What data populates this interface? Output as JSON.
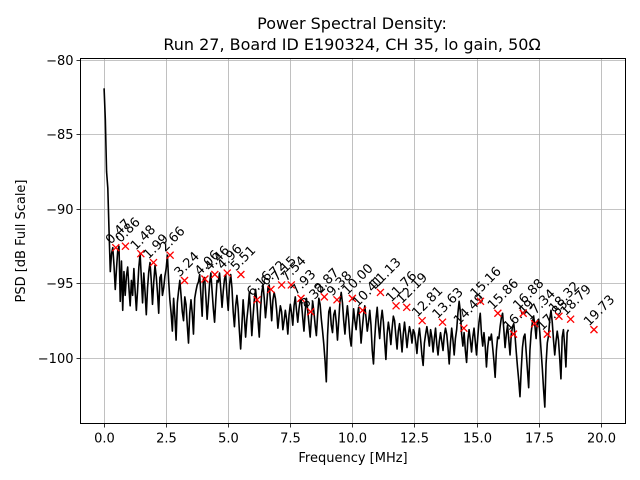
{
  "chart_data": {
    "type": "line",
    "title_line1": "Power Spectral Density:",
    "title_line2": "Run 27, Board ID E190324, CH 35, lo gain, 50Ω",
    "xlabel": "Frequency [MHz]",
    "ylabel": "PSD [dB Full Scale]",
    "xlim": [
      -0.95,
      21.0
    ],
    "ylim": [
      -104.4,
      -79.9
    ],
    "grid": true,
    "xticks": [
      0.0,
      2.5,
      5.0,
      7.5,
      10.0,
      12.5,
      15.0,
      17.5,
      20.0
    ],
    "xtick_labels": [
      "0.0",
      "2.5",
      "5.0",
      "7.5",
      "10.0",
      "12.5",
      "15.0",
      "17.5",
      "20.0"
    ],
    "yticks": [
      -80,
      -85,
      -90,
      -95,
      -100
    ],
    "ytick_labels": [
      "−80",
      "−85",
      "−90",
      "−95",
      "−100"
    ],
    "line_color": "#000000",
    "marker_color": "#ff0000",
    "series": [
      {
        "name": "PSD",
        "x_start": 0.0,
        "x_step": 0.05,
        "values": [
          -81.9,
          -84.0,
          -87.5,
          -88.6,
          -91.5,
          -94.2,
          -93.0,
          -92.6,
          -93.8,
          -95.4,
          -94.0,
          -92.8,
          -92.5,
          -96.2,
          -93.5,
          -96.8,
          -94.2,
          -95.8,
          -94.5,
          -93.9,
          -95.3,
          -96.5,
          -94.8,
          -95.8,
          -94.0,
          -95.5,
          -96.8,
          -95.4,
          -93.9,
          -93.0,
          -94.6,
          -96.3,
          -94.3,
          -95.6,
          -97.1,
          -95.3,
          -94.2,
          -93.6,
          -94.8,
          -96.4,
          -94.9,
          -93.8,
          -94.5,
          -95.6,
          -97.0,
          -94.6,
          -94.4,
          -95.8,
          -95.3,
          -94.5,
          -94.0,
          -93.1,
          -94.8,
          -96.1,
          -97.0,
          -98.2,
          -96.0,
          -97.2,
          -98.8,
          -96.3,
          -95.5,
          -94.8,
          -95.8,
          -96.9,
          -97.5,
          -95.9,
          -96.4,
          -97.8,
          -99.0,
          -97.0,
          -96.1,
          -97.0,
          -98.4,
          -96.0,
          -95.5,
          -95.1,
          -94.9,
          -94.4,
          -95.8,
          -97.2,
          -94.7,
          -94.6,
          -95.9,
          -97.4,
          -96.2,
          -95.0,
          -94.3,
          -95.5,
          -96.7,
          -97.6,
          -96.1,
          -94.8,
          -94.9,
          -94.3,
          -95.4,
          -96.6,
          -95.5,
          -94.7,
          -94.4,
          -95.8,
          -96.8,
          -95.1,
          -94.4,
          -95.3,
          -96.9,
          -97.9,
          -96.5,
          -95.8,
          -96.7,
          -98.2,
          -99.4,
          -97.8,
          -96.1,
          -97.3,
          -98.6,
          -97.4,
          -96.6,
          -95.6,
          -96.9,
          -98.5,
          -97.2,
          -96.1,
          -95.4,
          -96.2,
          -97.5,
          -98.6,
          -96.8,
          -95.6,
          -95.1,
          -96.0,
          -97.3,
          -96.4,
          -95.3,
          -95.1,
          -96.2,
          -97.5,
          -96.1,
          -95.6,
          -96.0,
          -96.8,
          -98.0,
          -97.2,
          -96.5,
          -96.9,
          -98.1,
          -97.5,
          -96.8,
          -97.4,
          -98.4,
          -97.1,
          -96.4,
          -97.0,
          -97.8,
          -96.5,
          -95.9,
          -96.8,
          -97.6,
          -96.7,
          -96.1,
          -96.3,
          -97.3,
          -98.2,
          -96.9,
          -96.0,
          -96.8,
          -97.7,
          -98.6,
          -97.3,
          -96.2,
          -96.9,
          -97.8,
          -98.5,
          -97.1,
          -96.0,
          -96.4,
          -97.4,
          -98.2,
          -99.1,
          -100.2,
          -101.6,
          -98.5,
          -96.9,
          -96.6,
          -97.8,
          -98.3,
          -97.1,
          -96.8,
          -97.6,
          -98.8,
          -97.5,
          -96.2,
          -95.6,
          -96.3,
          -97.5,
          -98.4,
          -97.3,
          -96.5,
          -97.4,
          -98.6,
          -99.2,
          -97.9,
          -96.7,
          -97.5,
          -98.1,
          -97.2,
          -96.6,
          -97.6,
          -99.0,
          -98.0,
          -97.1,
          -96.5,
          -97.3,
          -98.2,
          -97.6,
          -96.8,
          -97.8,
          -99.5,
          -100.4,
          -98.7,
          -97.4,
          -96.6,
          -97.8,
          -98.7,
          -97.5,
          -96.8,
          -97.6,
          -98.9,
          -100.1,
          -98.4,
          -97.6,
          -98.2,
          -99.1,
          -98.0,
          -97.2,
          -97.5,
          -98.5,
          -99.4,
          -98.2,
          -97.7,
          -98.6,
          -99.6,
          -98.4,
          -97.6,
          -98.4,
          -99.3,
          -98.5,
          -97.9,
          -98.3,
          -99.0,
          -98.1,
          -98.3,
          -98.9,
          -99.7,
          -98.6,
          -98.0,
          -98.8,
          -99.8,
          -100.5,
          -99.0,
          -98.4,
          -97.9,
          -98.5,
          -99.2,
          -98.1,
          -98.6,
          -99.6,
          -98.7,
          -98.0,
          -99.1,
          -99.8,
          -98.9,
          -98.3,
          -98.9,
          -99.5,
          -98.5,
          -98.0,
          -98.4,
          -99.3,
          -100.4,
          -99.0,
          -98.0,
          -98.8,
          -99.8,
          -98.7,
          -98.1,
          -97.0,
          -96.2,
          -96.9,
          -98.4,
          -99.2,
          -98.3,
          -99.5,
          -100.3,
          -98.8,
          -98.1,
          -98.8,
          -99.6,
          -98.6,
          -98.0,
          -98.9,
          -99.8,
          -98.6,
          -97.6,
          -97.0,
          -98.4,
          -99.2,
          -98.3,
          -99.2,
          -100.6,
          -99.3,
          -98.6,
          -98.8,
          -98.4,
          -99.3,
          -100.2,
          -101.3,
          -99.5,
          -98.6,
          -98.7,
          -97.9,
          -97.3,
          -97.0,
          -98.1,
          -99.3,
          -98.4,
          -97.8,
          -98.8,
          -99.8,
          -98.4,
          -97.9,
          -97.7,
          -98.5,
          -99.6,
          -100.6,
          -101.5,
          -102.6,
          -100.8,
          -99.3,
          -98.6,
          -98.4,
          -99.6,
          -100.8,
          -102.0,
          -99.5,
          -98.3,
          -97.6,
          -97.2,
          -97.8,
          -98.7,
          -97.5,
          -97.4,
          -98.3,
          -99.5,
          -100.7,
          -102.1,
          -103.3,
          -100.4,
          -99.0,
          -98.5,
          -97.4,
          -96.8,
          -97.6,
          -98.8,
          -99.8,
          -98.9,
          -98.2,
          -98.8,
          -100.0,
          -101.4,
          -98.6,
          -98.1,
          -99.2,
          -100.6,
          -98.3,
          -98.1
        ]
      }
    ],
    "peaks": [
      {
        "label": "0.47",
        "x": 0.47,
        "y": -92.6
      },
      {
        "label": "0.86",
        "x": 0.86,
        "y": -92.5
      },
      {
        "label": "1.48",
        "x": 1.48,
        "y": -93.0
      },
      {
        "label": "1.99",
        "x": 1.99,
        "y": -93.6
      },
      {
        "label": "2.66",
        "x": 2.66,
        "y": -93.1
      },
      {
        "label": "3.24",
        "x": 3.24,
        "y": -94.8
      },
      {
        "label": "4.06",
        "x": 4.06,
        "y": -94.7
      },
      {
        "label": "4.46",
        "x": 4.46,
        "y": -94.4
      },
      {
        "label": "4.96",
        "x": 4.96,
        "y": -94.3
      },
      {
        "label": "5.51",
        "x": 5.51,
        "y": -94.4
      },
      {
        "label": "6.16",
        "x": 6.16,
        "y": -96.1
      },
      {
        "label": "6.72",
        "x": 6.72,
        "y": -95.4
      },
      {
        "label": "7.15",
        "x": 7.15,
        "y": -95.1
      },
      {
        "label": "7.54",
        "x": 7.54,
        "y": -95.1
      },
      {
        "label": "7.93",
        "x": 7.93,
        "y": -96.0
      },
      {
        "label": "8.32",
        "x": 8.32,
        "y": -96.9
      },
      {
        "label": "8.87",
        "x": 8.87,
        "y": -95.9
      },
      {
        "label": "9.38",
        "x": 9.38,
        "y": -96.1
      },
      {
        "label": "10.00",
        "x": 10.0,
        "y": -96.0
      },
      {
        "label": "10.41",
        "x": 10.41,
        "y": -96.8
      },
      {
        "label": "11.13",
        "x": 11.13,
        "y": -95.6
      },
      {
        "label": "11.76",
        "x": 11.76,
        "y": -96.5
      },
      {
        "label": "12.19",
        "x": 12.19,
        "y": -96.6
      },
      {
        "label": "12.81",
        "x": 12.81,
        "y": -97.5
      },
      {
        "label": "13.63",
        "x": 13.63,
        "y": -97.6
      },
      {
        "label": "14.49",
        "x": 14.49,
        "y": -98.0
      },
      {
        "label": "15.16",
        "x": 15.16,
        "y": -96.2
      },
      {
        "label": "15.86",
        "x": 15.86,
        "y": -97.0
      },
      {
        "label": "16.49",
        "x": 16.49,
        "y": -98.4
      },
      {
        "label": "16.88",
        "x": 16.88,
        "y": -97.0
      },
      {
        "label": "17.34",
        "x": 17.34,
        "y": -97.7
      },
      {
        "label": "17.85",
        "x": 17.85,
        "y": -98.4
      },
      {
        "label": "18.32",
        "x": 18.32,
        "y": -97.2
      },
      {
        "label": "18.79",
        "x": 18.79,
        "y": -97.4
      },
      {
        "label": "19.73",
        "x": 19.73,
        "y": -98.1
      }
    ]
  }
}
